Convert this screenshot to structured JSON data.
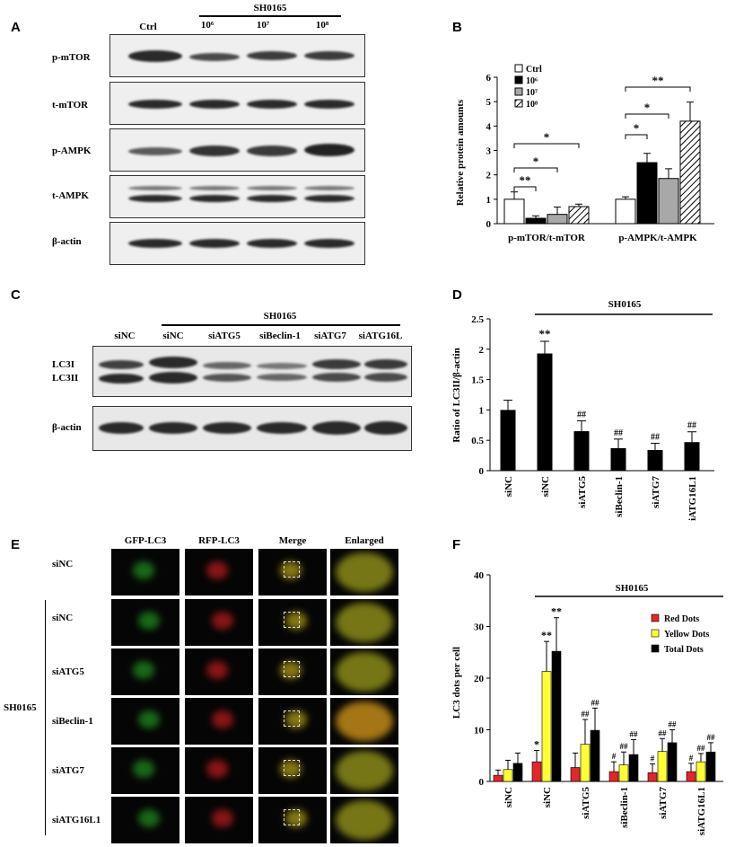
{
  "panels": {
    "A": "A",
    "B": "B",
    "C": "C",
    "D": "D",
    "E": "E",
    "F": "F"
  },
  "panelA": {
    "group_label": "SH0165",
    "columns": [
      "Ctrl",
      "10⁶",
      "10⁷",
      "10⁸"
    ],
    "rows": [
      "p-mTOR",
      "t-mTOR",
      "p-AMPK",
      "t-AMPK",
      "β-actin"
    ]
  },
  "panelC": {
    "group_label": "SH0165",
    "columns": [
      "siNC",
      "siNC",
      "siATG5",
      "siBeclin-1",
      "siATG7",
      "siATG16L"
    ],
    "rows": [
      "LC3I",
      "LC3II",
      "β-actin"
    ]
  },
  "panelE": {
    "columns": [
      "GFP-LC3",
      "RFP-LC3",
      "Merge",
      "Enlarged"
    ],
    "rows": [
      "siNC",
      "siNC",
      "siATG5",
      "siBeclin-1",
      "siATG7",
      "siATG16L1"
    ],
    "group_label": "SH0165"
  },
  "chart_data": [
    {
      "id": "B",
      "type": "bar",
      "ylabel": "Relative protein amounts",
      "ylim": [
        0,
        6
      ],
      "yticks": [
        "0",
        "1",
        "2",
        "3",
        "4",
        "5",
        "6"
      ],
      "categories": [
        "p-mTOR/t-mTOR",
        "p-AMPK/t-AMPK"
      ],
      "legend_position": "top-left",
      "series": [
        {
          "name": "Ctrl",
          "values": [
            1.0,
            1.0
          ],
          "errors": [
            0.3,
            0.1
          ],
          "fill": "white"
        },
        {
          "name": "10⁶",
          "values": [
            0.22,
            2.5
          ],
          "errors": [
            0.1,
            0.38
          ],
          "fill": "black"
        },
        {
          "name": "10⁷",
          "values": [
            0.38,
            1.85
          ],
          "errors": [
            0.3,
            0.4
          ],
          "fill": "gray"
        },
        {
          "name": "10⁸",
          "values": [
            0.7,
            4.2
          ],
          "errors": [
            0.1,
            0.78
          ],
          "fill": "hatch"
        }
      ],
      "significance": [
        {
          "group": 0,
          "from": 0,
          "to": 1,
          "label": "**"
        },
        {
          "group": 0,
          "from": 0,
          "to": 2,
          "label": "*"
        },
        {
          "group": 0,
          "from": 0,
          "to": 3,
          "label": "*"
        },
        {
          "group": 1,
          "from": 0,
          "to": 1,
          "label": "*"
        },
        {
          "group": 1,
          "from": 0,
          "to": 2,
          "label": "*"
        },
        {
          "group": 1,
          "from": 0,
          "to": 3,
          "label": "**"
        }
      ]
    },
    {
      "id": "D",
      "type": "bar",
      "title": "SH0165",
      "ylabel": "Ratio of LC3II/β-actin",
      "ylim": [
        0,
        2.5
      ],
      "yticks": [
        "0",
        "0.5",
        "1",
        "1.5",
        "2",
        "2.5"
      ],
      "categories": [
        "siNC",
        "siNC",
        "siATG5",
        "siBeclin-1",
        "siATG7",
        "siATG16L1"
      ],
      "values": [
        1.0,
        1.93,
        0.65,
        0.37,
        0.34,
        0.47
      ],
      "errors": [
        0.16,
        0.2,
        0.17,
        0.15,
        0.11,
        0.17
      ],
      "annotations": [
        "",
        "**",
        "##",
        "##",
        "##",
        "##"
      ]
    },
    {
      "id": "F",
      "type": "bar",
      "title": "SH0165",
      "ylabel": "LC3 dots per cell",
      "ylim": [
        0,
        40
      ],
      "yticks": [
        "0",
        "10",
        "20",
        "30",
        "40"
      ],
      "categories": [
        "siNC",
        "siNC",
        "siATG5",
        "siBeclin-1",
        "siATG7",
        "siATG16L1"
      ],
      "legend_position": "top-right",
      "series": [
        {
          "name": "Red Dots",
          "color": "#e3262b",
          "values": [
            1.2,
            3.8,
            2.7,
            1.9,
            1.7,
            1.9
          ],
          "errors": [
            1.0,
            2.2,
            2.8,
            1.9,
            1.7,
            1.6
          ],
          "annotations": [
            "",
            "*",
            "",
            "#",
            "#",
            "#"
          ]
        },
        {
          "name": "Yellow Dots",
          "color": "#ffff33",
          "values": [
            2.3,
            21.3,
            7.2,
            3.2,
            5.8,
            3.8
          ],
          "errors": [
            1.8,
            5.8,
            4.8,
            2.5,
            2.5,
            1.6
          ],
          "annotations": [
            "",
            "**",
            "##",
            "##",
            "##",
            "##"
          ]
        },
        {
          "name": "Total Dots",
          "color": "#000000",
          "values": [
            3.5,
            25.2,
            9.9,
            5.2,
            7.5,
            5.7
          ],
          "errors": [
            2.0,
            6.5,
            4.3,
            2.9,
            2.5,
            1.8
          ],
          "annotations": [
            "",
            "**",
            "##",
            "##",
            "##",
            "##"
          ]
        }
      ]
    }
  ]
}
